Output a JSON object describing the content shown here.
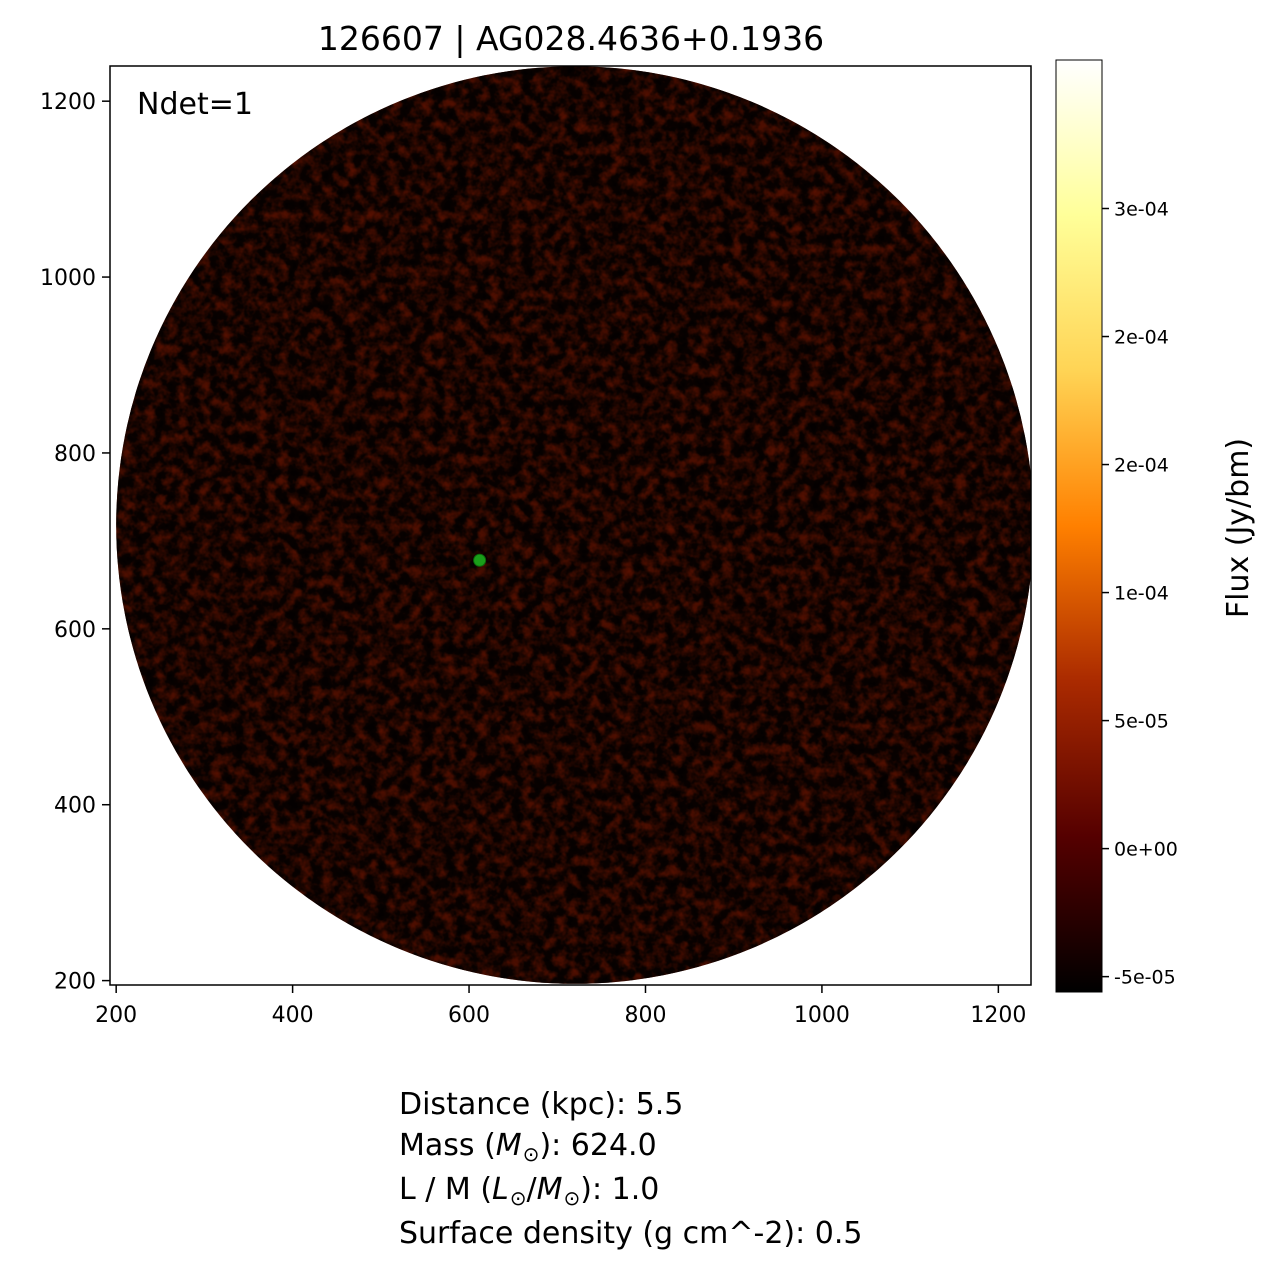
{
  "title": "126607 | AG028.4636+0.1936",
  "annotation": "Ndet=1",
  "x_axis": {
    "range": [
      193,
      1237
    ],
    "ticks": [
      200,
      400,
      600,
      800,
      1000,
      1200
    ]
  },
  "y_axis": {
    "range": [
      195,
      1240
    ],
    "ticks": [
      200,
      400,
      600,
      800,
      1000,
      1200
    ]
  },
  "image": {
    "field_of_view": "circular",
    "colormap": "afmhot",
    "map_center": [
      720,
      718
    ],
    "map_radius": 520,
    "source_marker": {
      "x": 612,
      "y": 678,
      "color": "#1a9e1a"
    }
  },
  "colorbar": {
    "label": "Flux (Jy/bm)",
    "vmin": -5.6e-05,
    "vmax": 0.000308,
    "ticks": [
      {
        "value": -5e-05,
        "label": "-5e-05"
      },
      {
        "value": 0,
        "label": "0e+00"
      },
      {
        "value": 5e-05,
        "label": "5e-05"
      },
      {
        "value": 0.0001,
        "label": "1e-04"
      },
      {
        "value": 0.00015,
        "label": "2e-04"
      },
      {
        "value": 0.0002,
        "label": "2e-04"
      },
      {
        "value": 0.00025,
        "label": "3e-04"
      }
    ],
    "colors": [
      "#000000",
      "#550000",
      "#aa2a00",
      "#ff8000",
      "#ffd455",
      "#ffff99",
      "#ffffff"
    ]
  },
  "info": {
    "distance_label": "Distance (kpc): ",
    "distance_value": "5.5",
    "mass_label_pre": "Mass (",
    "mass_symbol": "M",
    "mass_label_post": "): ",
    "mass_value": "624.0",
    "lm_label_pre": "L / M (",
    "lm_sym_L": "L",
    "lm_sym_M": "M",
    "lm_label_post": "): ",
    "lm_value": "1.0",
    "sd_label": "Surface density (g cm^-2): ",
    "sd_value": "0.5"
  }
}
